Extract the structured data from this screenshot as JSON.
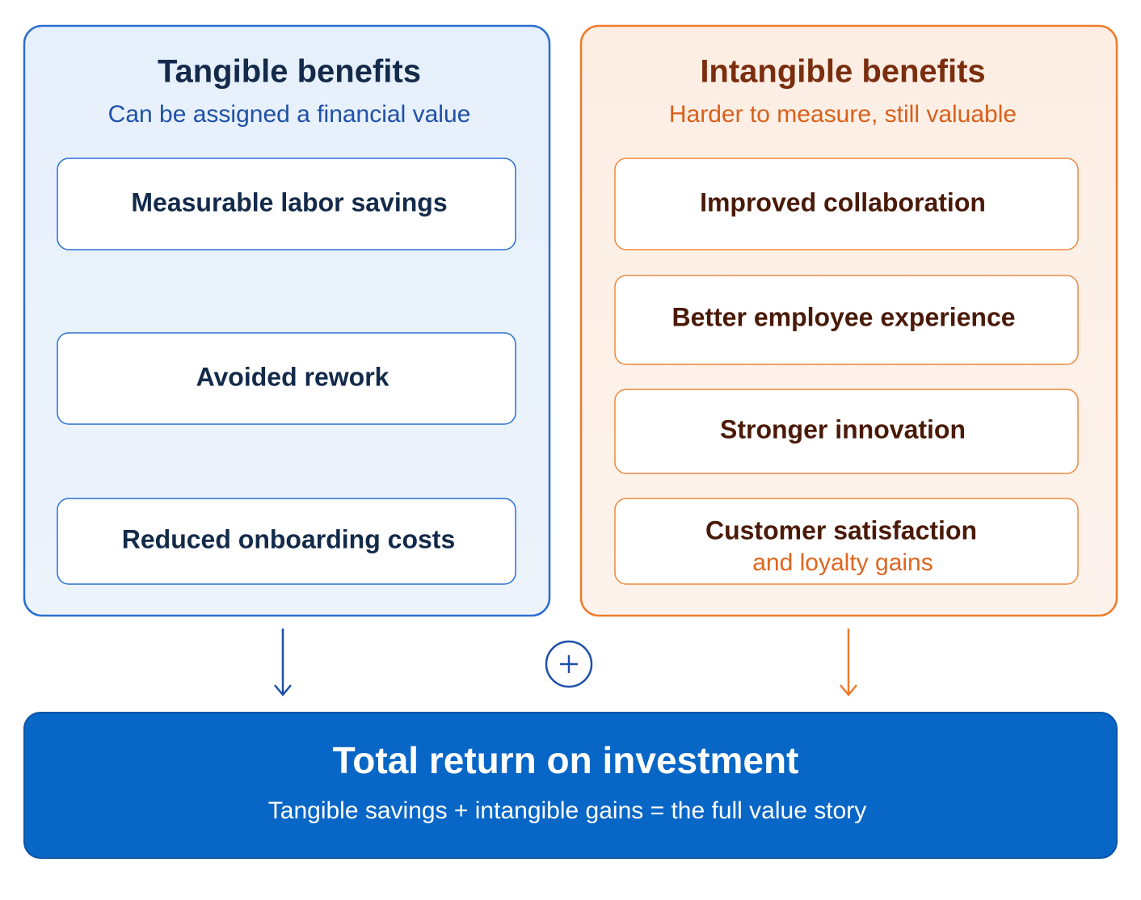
{
  "left": {
    "title": "Tangible benefits",
    "subtitle": "Can be assigned a financial value",
    "items": [
      {
        "label": "Measurable labor savings"
      },
      {
        "label": "Avoided rework"
      },
      {
        "label": "Reduced onboarding costs"
      }
    ]
  },
  "right": {
    "title": "Intangible benefits",
    "subtitle": "Harder to measure, still valuable",
    "items": [
      {
        "label": "Improved collaboration"
      },
      {
        "label": "Better employee experience"
      },
      {
        "label": "Stronger innovation"
      },
      {
        "label": "Customer satisfaction",
        "sublabel": "and loyalty gains"
      }
    ]
  },
  "total": {
    "title": "Total return on investment",
    "subtitle": "Tangible savings + intangible gains = the full value story"
  }
}
